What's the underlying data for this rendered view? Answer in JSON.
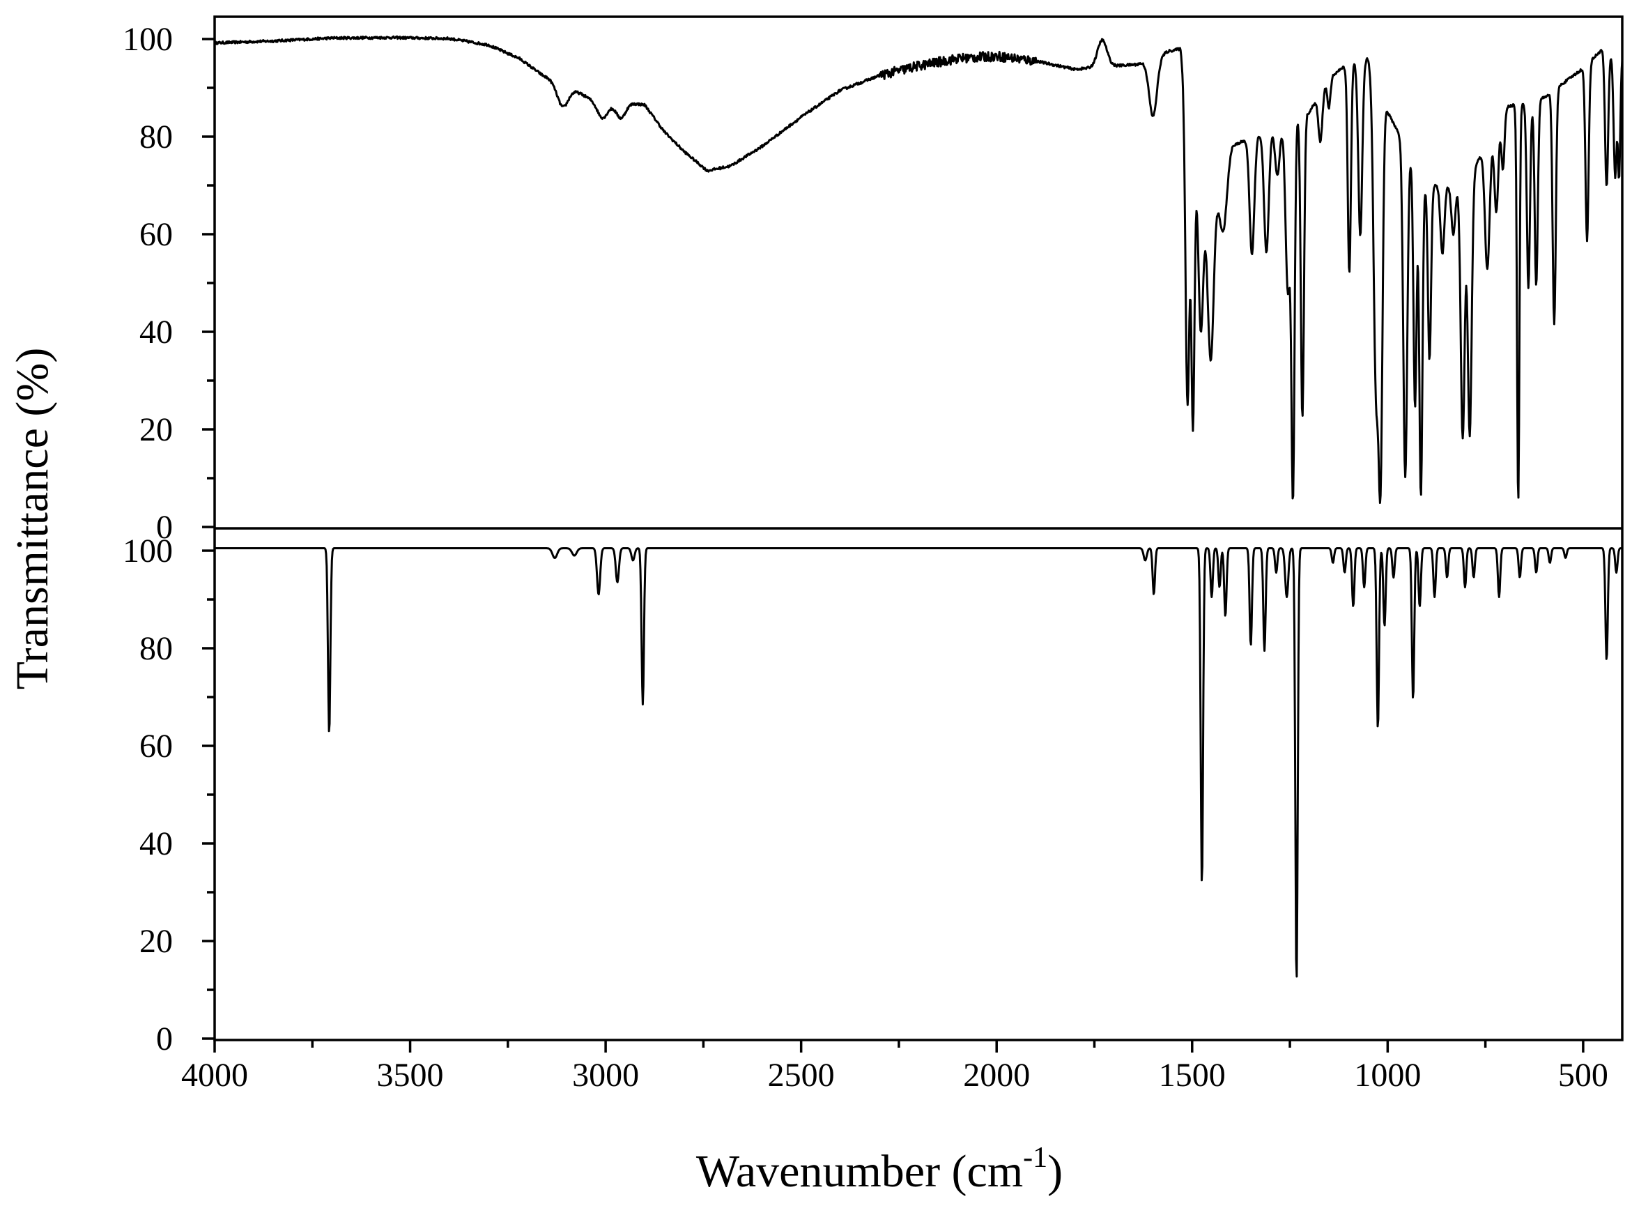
{
  "chart_data": {
    "type": "line",
    "xlabel": "Wavenumber (cm",
    "xlabel_sup": "-1",
    "xlabel_close": ")",
    "ylabel": "Transmittance (%)",
    "xlim": [
      4000,
      400
    ],
    "x_reversed": true,
    "x_ticks": [
      4000,
      3500,
      3000,
      2500,
      2000,
      1500,
      1000,
      500
    ],
    "x_tick_labels": [
      "4000",
      "3500",
      "3000",
      "2500",
      "2000",
      "1500",
      "1000",
      "500"
    ],
    "grid": false,
    "legend": "none",
    "panels": [
      {
        "position": "top",
        "ylim": [
          0,
          105
        ],
        "y_ticks": [
          0,
          20,
          40,
          60,
          80,
          100
        ],
        "y_tick_labels": [
          "0",
          "20",
          "40",
          "60",
          "80",
          "100"
        ],
        "series": [
          {
            "style": "experimental",
            "color": "#000000",
            "baseline": [
              [
                4000,
                99.2
              ],
              [
                3850,
                99.6
              ],
              [
                3700,
                100.2
              ],
              [
                3550,
                100.3
              ],
              [
                3400,
                100.1
              ],
              [
                3300,
                98.8
              ],
              [
                3220,
                96.0
              ],
              [
                3160,
                92.5
              ],
              [
                3080,
                89.5
              ],
              [
                3000,
                86.0
              ],
              [
                2950,
                87.0
              ],
              [
                2900,
                86.5
              ],
              [
                2850,
                81.0
              ],
              [
                2800,
                77.0
              ],
              [
                2740,
                73.0
              ],
              [
                2680,
                74.0
              ],
              [
                2600,
                78.0
              ],
              [
                2500,
                84.0
              ],
              [
                2400,
                89.5
              ],
              [
                2300,
                92.5
              ],
              [
                2200,
                94.5
              ],
              [
                2100,
                96.0
              ],
              [
                2000,
                96.5
              ],
              [
                1900,
                95.5
              ],
              [
                1800,
                93.8
              ],
              [
                1700,
                94.5
              ],
              [
                1640,
                94.8
              ],
              [
                1560,
                97.5
              ],
              [
                1530,
                98.0
              ],
              [
                1500,
                80.0
              ],
              [
                1460,
                62.0
              ],
              [
                1400,
                78.0
              ],
              [
                1200,
                85.0
              ],
              [
                1150,
                92.0
              ],
              [
                1100,
                95.0
              ],
              [
                1050,
                96.0
              ],
              [
                1000,
                85.0
              ],
              [
                900,
                70.0
              ],
              [
                800,
                70.0
              ],
              [
                700,
                86.0
              ],
              [
                600,
                88.0
              ],
              [
                500,
                94.0
              ],
              [
                450,
                98.0
              ],
              [
                400,
                96.0
              ]
            ],
            "bands": [
              [
                3110,
                4.5,
                14
              ],
              [
                3010,
                2.5,
                12
              ],
              [
                2960,
                3.0,
                12
              ],
              [
                1730,
                -5.5,
                12
              ],
              [
                1600,
                12.0,
                10
              ],
              [
                1512,
                62.0,
                5
              ],
              [
                1498,
                58.0,
                4
              ],
              [
                1478,
                30.0,
                6
              ],
              [
                1452,
                30.0,
                7
              ],
              [
                1420,
                12.0,
                9
              ],
              [
                1347,
                24.0,
                6
              ],
              [
                1310,
                25.0,
                6
              ],
              [
                1282,
                10.0,
                6
              ],
              [
                1255,
                35.0,
                6
              ],
              [
                1242,
                75.0,
                4
              ],
              [
                1218,
                62.0,
                4
              ],
              [
                1172,
                10.0,
                5
              ],
              [
                1150,
                6.0,
                4
              ],
              [
                1098,
                43.0,
                4
              ],
              [
                1070,
                36.0,
                5
              ],
              [
                1030,
                62.0,
                6
              ],
              [
                1018,
                74.0,
                5
              ],
              [
                955,
                68.0,
                5
              ],
              [
                930,
                50.0,
                4
              ],
              [
                915,
                66.0,
                4
              ],
              [
                893,
                36.0,
                4
              ],
              [
                860,
                14.0,
                5
              ],
              [
                832,
                10.0,
                5
              ],
              [
                808,
                52.0,
                5
              ],
              [
                790,
                53.0,
                5
              ],
              [
                745,
                26.0,
                6
              ],
              [
                722,
                18.0,
                5
              ],
              [
                705,
                12.0,
                4
              ],
              [
                666,
                82.0,
                3
              ],
              [
                640,
                38.0,
                4
              ],
              [
                620,
                38.0,
                4
              ],
              [
                574,
                48.0,
                4
              ],
              [
                490,
                36.0,
                4
              ],
              [
                440,
                28.0,
                4
              ],
              [
                418,
                25.0,
                4
              ],
              [
                408,
                24.0,
                3
              ]
            ],
            "noise_amplitude": 0.5,
            "noise_region": [
              2300,
              1900
            ]
          }
        ]
      },
      {
        "position": "bottom",
        "ylim": [
          0,
          105
        ],
        "y_ticks": [
          0,
          20,
          40,
          60,
          80,
          100
        ],
        "y_tick_labels": [
          "0",
          "20",
          "40",
          "60",
          "80",
          "100"
        ],
        "series": [
          {
            "style": "calculated",
            "color": "#000000",
            "baseline": 100.5,
            "bands": [
              [
                3707,
                38.0,
                3
              ],
              [
                3130,
                2.0,
                6
              ],
              [
                3080,
                1.5,
                6
              ],
              [
                3018,
                9.5,
                4
              ],
              [
                2970,
                7.0,
                4
              ],
              [
                2930,
                2.5,
                4
              ],
              [
                2905,
                32.0,
                3
              ],
              [
                1620,
                2.5,
                4
              ],
              [
                1598,
                9.5,
                3
              ],
              [
                1475,
                69.0,
                3
              ],
              [
                1450,
                10.0,
                3
              ],
              [
                1430,
                8.0,
                3
              ],
              [
                1415,
                14.0,
                3
              ],
              [
                1350,
                20.0,
                3
              ],
              [
                1315,
                21.0,
                3
              ],
              [
                1285,
                5.0,
                3
              ],
              [
                1258,
                10.0,
                4
              ],
              [
                1233,
                89.0,
                3
              ],
              [
                1140,
                3.0,
                3
              ],
              [
                1110,
                5.0,
                3
              ],
              [
                1088,
                12.0,
                3
              ],
              [
                1060,
                8.0,
                3
              ],
              [
                1025,
                37.0,
                3
              ],
              [
                1008,
                16.0,
                3
              ],
              [
                985,
                6.0,
                3
              ],
              [
                935,
                31.0,
                3
              ],
              [
                918,
                12.0,
                3
              ],
              [
                880,
                10.0,
                3
              ],
              [
                848,
                6.0,
                3
              ],
              [
                802,
                8.0,
                3
              ],
              [
                780,
                6.0,
                3
              ],
              [
                715,
                10.0,
                3
              ],
              [
                662,
                6.0,
                3
              ],
              [
                620,
                5.0,
                3
              ],
              [
                585,
                3.0,
                3
              ],
              [
                545,
                2.0,
                3
              ],
              [
                440,
                23.0,
                3
              ],
              [
                415,
                5.0,
                3
              ]
            ]
          }
        ]
      }
    ]
  }
}
